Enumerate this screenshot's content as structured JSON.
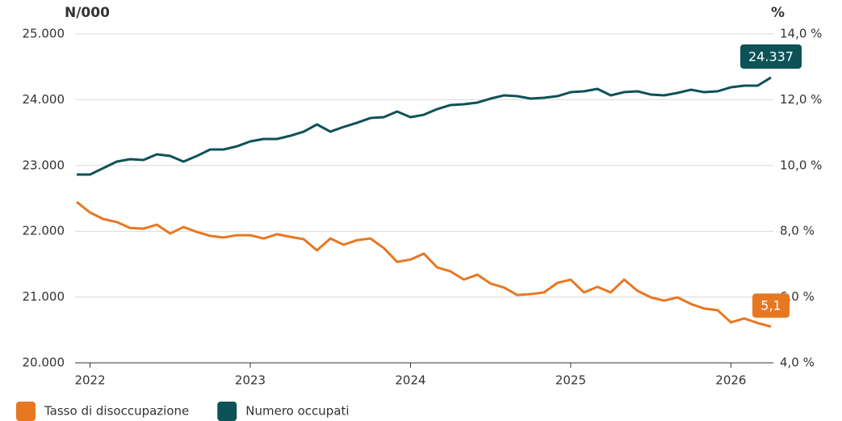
{
  "chart_data": {
    "type": "line",
    "y_label": "N/000",
    "y2_label": "%",
    "categories": [
      null,
      "2022",
      null,
      null,
      null,
      null,
      null,
      null,
      null,
      null,
      null,
      null,
      null,
      "2023",
      null,
      null,
      null,
      null,
      null,
      null,
      null,
      null,
      null,
      null,
      null,
      "2024",
      null,
      null,
      null,
      null,
      null,
      null,
      null,
      null,
      null,
      null,
      null,
      "2025",
      null,
      null,
      null,
      null,
      null,
      null,
      null,
      null,
      null,
      null,
      null,
      "2026",
      null,
      null,
      null
    ],
    "series": [
      {
        "name": "Tasso di disoccupazione",
        "color": "#e87722",
        "axis": "y2",
        "values": [
          8.89,
          8.57,
          8.37,
          8.28,
          8.1,
          8.08,
          8.2,
          7.93,
          8.13,
          7.98,
          7.86,
          7.81,
          7.88,
          7.88,
          7.78,
          7.91,
          7.83,
          7.76,
          7.42,
          7.78,
          7.59,
          7.73,
          7.78,
          7.49,
          7.07,
          7.14,
          7.32,
          6.9,
          6.78,
          6.53,
          6.68,
          6.41,
          6.29,
          6.06,
          6.09,
          6.14,
          6.43,
          6.53,
          6.14,
          6.31,
          6.14,
          6.53,
          6.19,
          5.99,
          5.89,
          5.99,
          5.79,
          5.65,
          5.6,
          5.23,
          5.35,
          5.21,
          5.1
        ],
        "value_labels": [
          null,
          null,
          null,
          null,
          null,
          null,
          null,
          null,
          null,
          null,
          null,
          null,
          null,
          null,
          null,
          null,
          null,
          null,
          null,
          null,
          null,
          null,
          null,
          null,
          null,
          null,
          null,
          null,
          null,
          null,
          null,
          null,
          null,
          null,
          null,
          null,
          null,
          null,
          null,
          null,
          null,
          null,
          null,
          null,
          null,
          null,
          null,
          null,
          null,
          null,
          null,
          null,
          "5,1"
        ]
      },
      {
        "name": "Numero occupati",
        "color": "#0d5257",
        "axis": "y",
        "values": [
          22862,
          22862,
          22961,
          23059,
          23096,
          23084,
          23170,
          23145,
          23059,
          23145,
          23243,
          23243,
          23292,
          23366,
          23403,
          23403,
          23452,
          23514,
          23624,
          23514,
          23587,
          23649,
          23722,
          23735,
          23821,
          23735,
          23771,
          23857,
          23919,
          23931,
          23956,
          24017,
          24066,
          24054,
          24017,
          24029,
          24054,
          24115,
          24128,
          24165,
          24066,
          24115,
          24128,
          24079,
          24066,
          24103,
          24152,
          24115,
          24128,
          24189,
          24214,
          24214,
          24337
        ],
        "value_labels": [
          null,
          null,
          null,
          null,
          null,
          null,
          null,
          null,
          null,
          null,
          null,
          null,
          null,
          null,
          null,
          null,
          null,
          null,
          null,
          null,
          null,
          null,
          null,
          null,
          null,
          null,
          null,
          null,
          null,
          null,
          null,
          null,
          null,
          null,
          null,
          null,
          null,
          null,
          null,
          null,
          null,
          null,
          null,
          null,
          null,
          null,
          null,
          null,
          null,
          null,
          null,
          null,
          "24.337"
        ]
      }
    ],
    "ylim": [
      20000,
      25000
    ],
    "yticks": [
      {
        "value": 20000,
        "label": "20.000"
      },
      {
        "value": 21000,
        "label": "21.000"
      },
      {
        "value": 22000,
        "label": "22.000"
      },
      {
        "value": 23000,
        "label": "23.000"
      },
      {
        "value": 24000,
        "label": "24.000"
      },
      {
        "value": 25000,
        "label": "25.000"
      }
    ],
    "y2lim": [
      4,
      14
    ],
    "y2ticks": [
      {
        "value": 4,
        "label": "4,0 %"
      },
      {
        "value": 6,
        "label": "6,0 %"
      },
      {
        "value": 8,
        "label": "8,0 %"
      },
      {
        "value": 10,
        "label": "10,0 %"
      },
      {
        "value": 12,
        "label": "12,0 %"
      },
      {
        "value": 14,
        "label": "14,0 %"
      }
    ],
    "grid": true,
    "legend": "bottom-left"
  }
}
